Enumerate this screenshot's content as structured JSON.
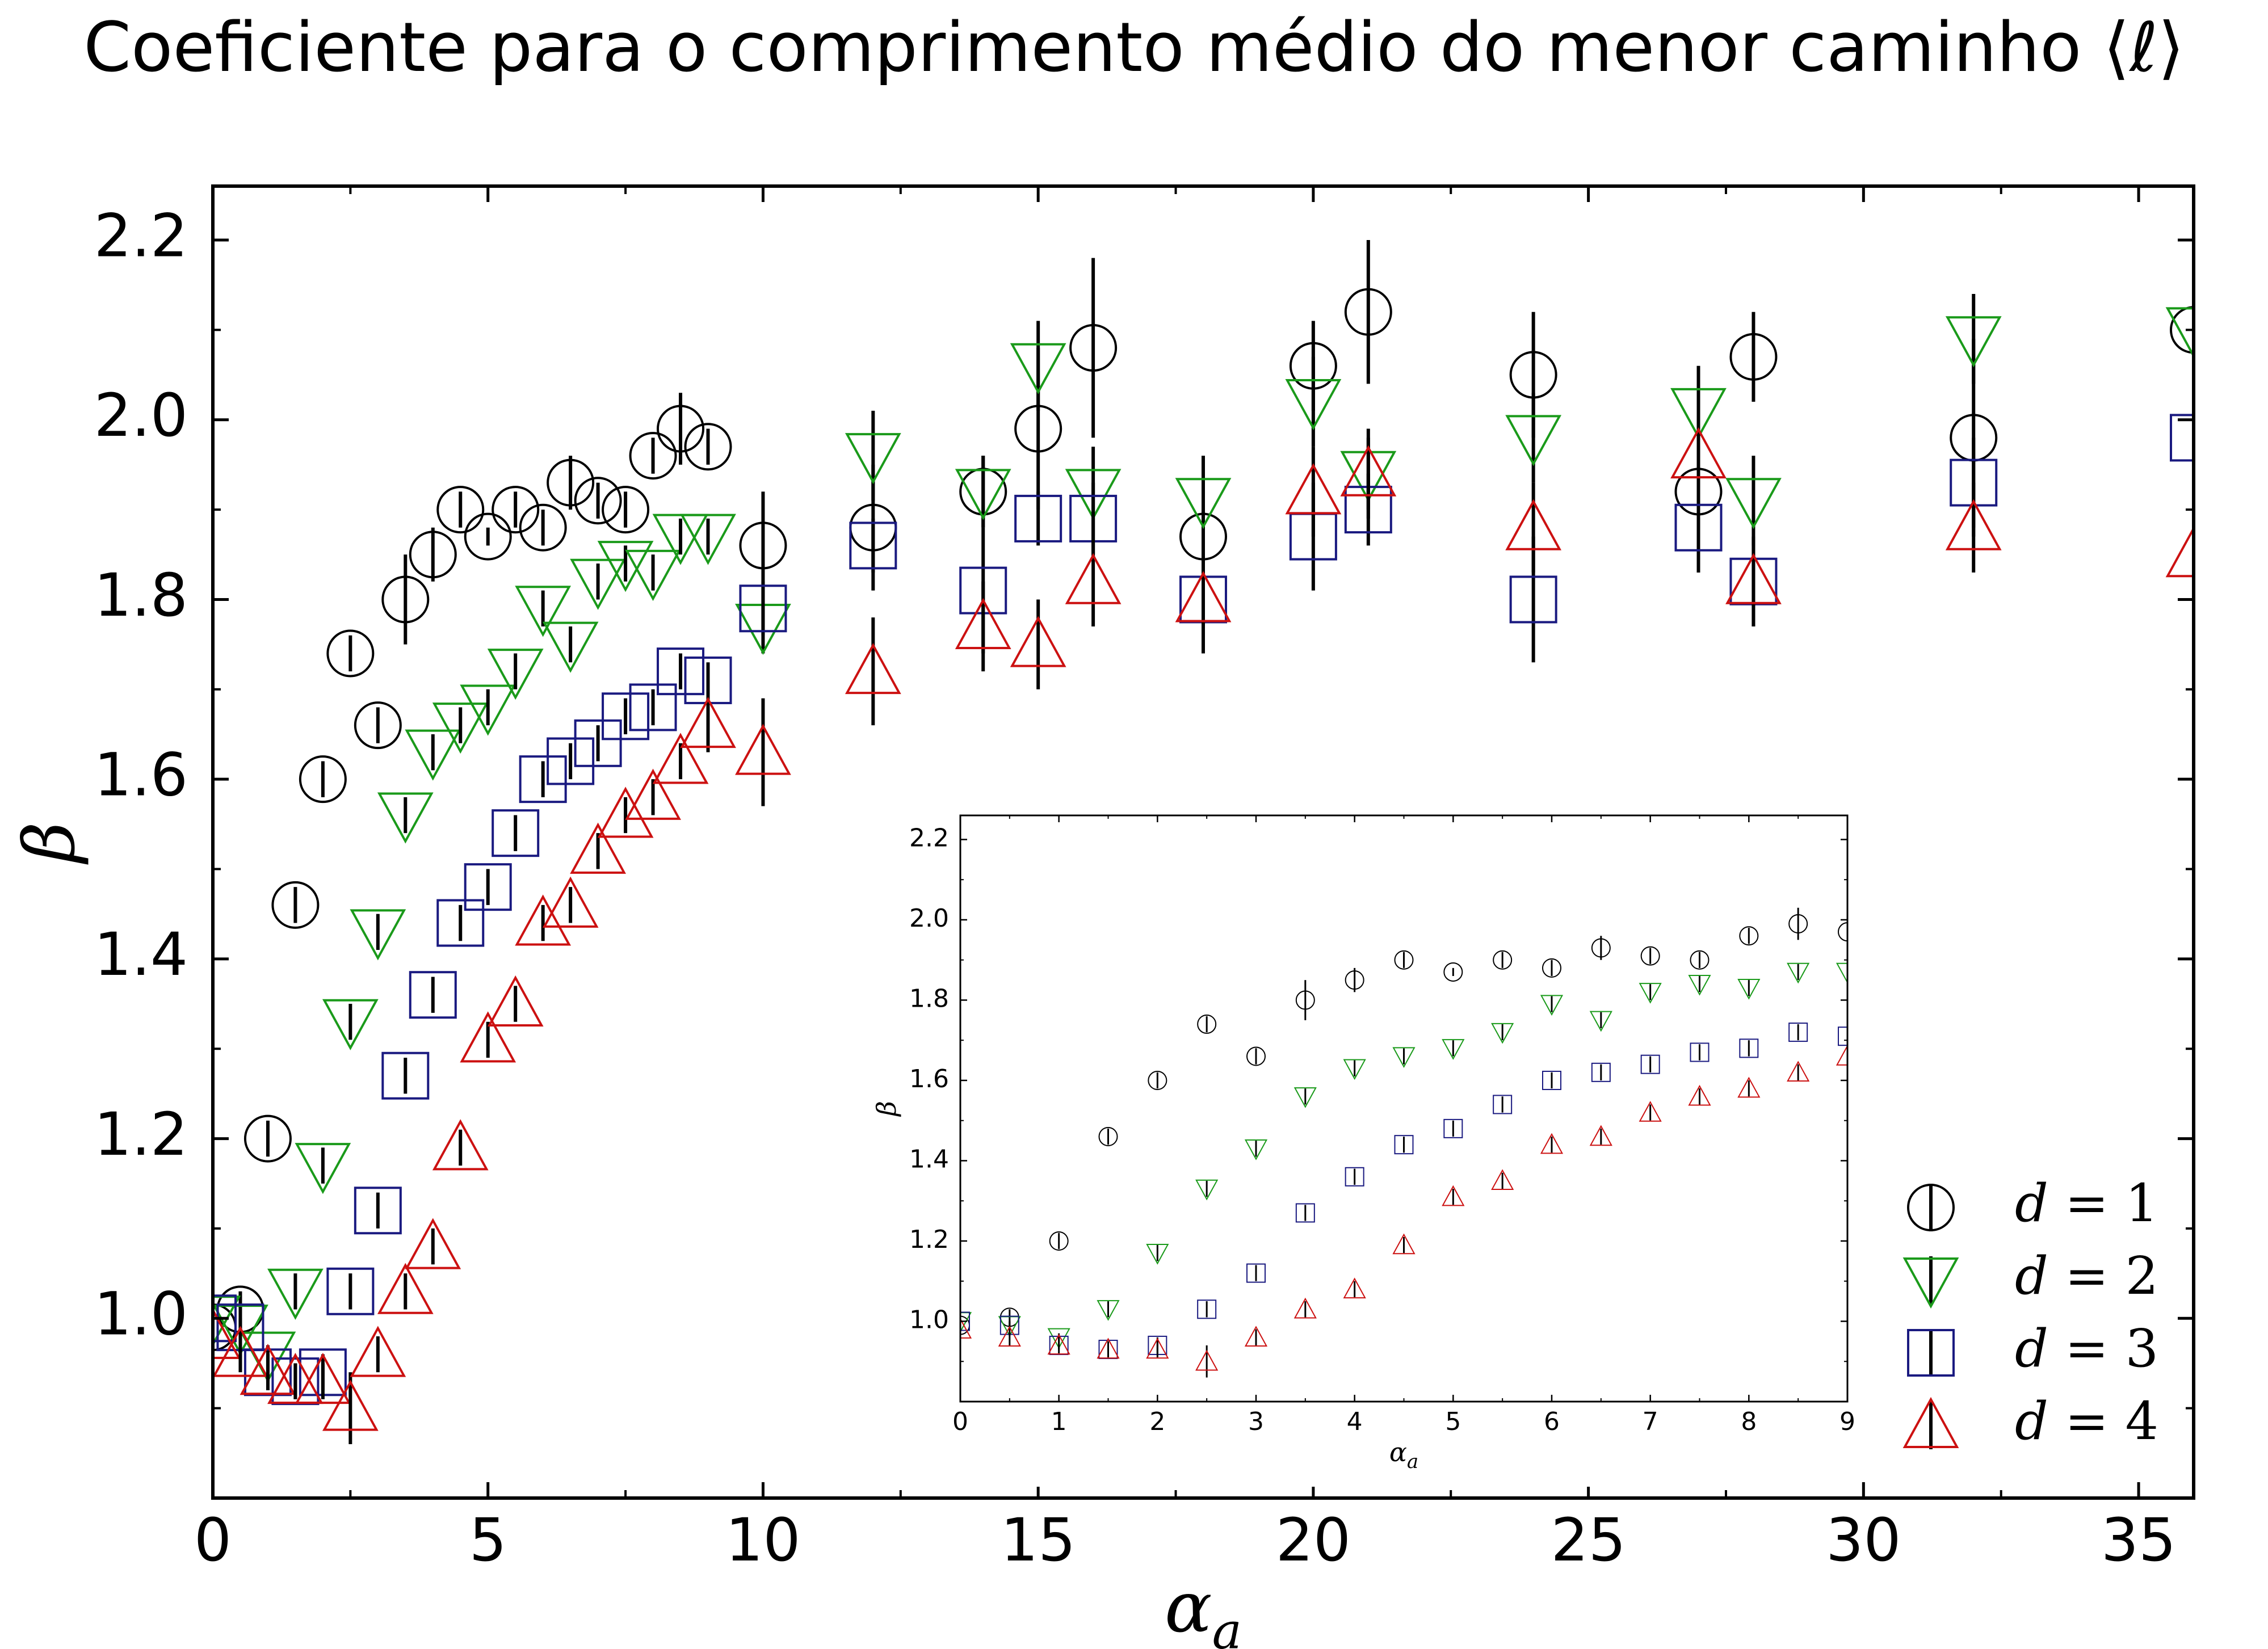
{
  "chart_data": [
    {
      "type": "scatter",
      "title": "Coeficiente para o comprimento médio do menor caminho ⟨ℓ⟩",
      "xlabel": "α_a",
      "ylabel": "β",
      "xlim": [
        0,
        36
      ],
      "ylim": [
        0.8,
        2.26
      ],
      "xticks": [
        "0",
        "5",
        "10",
        "15",
        "20",
        "25",
        "30",
        "35"
      ],
      "yticks": [
        "1.0",
        "1.2",
        "1.4",
        "1.6",
        "1.8",
        "2.0",
        "2.2"
      ],
      "grid": false,
      "legend_position": "bottom-right",
      "series": [
        {
          "name": "d = 1",
          "marker": "circle",
          "color": "#000000",
          "x": [
            0,
            0.5,
            1,
            1.5,
            2,
            2.5,
            3,
            3.5,
            4,
            4.5,
            5,
            5.5,
            6,
            6.5,
            7,
            7.5,
            8,
            8.5,
            9,
            10,
            12,
            14,
            15,
            16,
            18,
            20,
            21,
            24,
            27,
            28,
            32,
            36
          ],
          "y": [
            0.99,
            1.01,
            1.2,
            1.46,
            1.6,
            1.74,
            1.66,
            1.8,
            1.85,
            1.9,
            1.87,
            1.9,
            1.88,
            1.93,
            1.91,
            1.9,
            1.96,
            1.99,
            1.97,
            1.86,
            1.88,
            1.92,
            1.99,
            2.08,
            1.87,
            2.06,
            2.12,
            2.05,
            1.92,
            2.07,
            1.98,
            2.1
          ],
          "err": [
            0.01,
            0.02,
            0.02,
            0.02,
            0.02,
            0.02,
            0.02,
            0.05,
            0.03,
            0.02,
            0.01,
            0.02,
            0.02,
            0.03,
            0.02,
            0.02,
            0.02,
            0.04,
            0.02,
            0.06,
            0.07,
            0.04,
            0.09,
            0.1,
            0.08,
            0.05,
            0.08,
            0.07,
            0.09,
            0.05,
            0.11,
            0.05
          ]
        },
        {
          "name": "d = 2",
          "marker": "triangle-down",
          "color": "#1a9a1a",
          "x": [
            0,
            0.5,
            1,
            1.5,
            2,
            2.5,
            3,
            3.5,
            4,
            4.5,
            5,
            5.5,
            6,
            6.5,
            7,
            7.5,
            8,
            8.5,
            9,
            10,
            12,
            14,
            15,
            16,
            18,
            20,
            21,
            24,
            27,
            28,
            32,
            36
          ],
          "y": [
            1.0,
            0.99,
            0.96,
            1.03,
            1.17,
            1.33,
            1.43,
            1.56,
            1.63,
            1.66,
            1.68,
            1.72,
            1.79,
            1.75,
            1.82,
            1.84,
            1.83,
            1.87,
            1.87,
            1.77,
            1.96,
            1.92,
            2.06,
            1.92,
            1.91,
            2.02,
            1.94,
            1.98,
            2.01,
            1.91,
            2.09,
            2.1
          ],
          "err": [
            0.01,
            0.01,
            0.01,
            0.02,
            0.02,
            0.02,
            0.02,
            0.02,
            0.02,
            0.02,
            0.02,
            0.02,
            0.02,
            0.02,
            0.02,
            0.02,
            0.02,
            0.02,
            0.02,
            0.03,
            0.05,
            0.04,
            0.05,
            0.05,
            0.05,
            0.05,
            0.04,
            0.05,
            0.05,
            0.05,
            0.05,
            0.05
          ]
        },
        {
          "name": "d = 3",
          "marker": "square",
          "color": "#1a1a80",
          "x": [
            0,
            0.5,
            1,
            1.5,
            2,
            2.5,
            3,
            3.5,
            4,
            4.5,
            5,
            5.5,
            6,
            6.5,
            7,
            7.5,
            8,
            8.5,
            9,
            10,
            12,
            14,
            15,
            16,
            18,
            20,
            21,
            24,
            27,
            28,
            32,
            36
          ],
          "y": [
            1.0,
            0.99,
            0.94,
            0.93,
            0.94,
            1.03,
            1.12,
            1.27,
            1.36,
            1.44,
            1.48,
            1.54,
            1.6,
            1.62,
            1.64,
            1.67,
            1.68,
            1.72,
            1.71,
            1.79,
            1.86,
            1.81,
            1.89,
            1.89,
            1.8,
            1.87,
            1.9,
            1.8,
            1.88,
            1.82,
            1.93,
            1.98
          ],
          "err": [
            0.01,
            0.01,
            0.01,
            0.02,
            0.02,
            0.02,
            0.02,
            0.02,
            0.02,
            0.02,
            0.02,
            0.02,
            0.02,
            0.02,
            0.02,
            0.02,
            0.02,
            0.02,
            0.02,
            0.03,
            0.03,
            0.07,
            0.03,
            0.04,
            0.06,
            0.06,
            0.04,
            0.07,
            0.05,
            0.05,
            0.05,
            0.04
          ]
        },
        {
          "name": "d = 4",
          "marker": "triangle-up",
          "color": "#cc1111",
          "x": [
            0,
            0.5,
            1,
            1.5,
            2,
            2.5,
            3,
            3.5,
            4,
            4.5,
            5,
            5.5,
            6,
            6.5,
            7,
            7.5,
            8,
            8.5,
            9,
            10,
            12,
            14,
            15,
            16,
            18,
            20,
            21,
            24,
            27,
            28,
            32,
            36
          ],
          "y": [
            0.98,
            0.96,
            0.94,
            0.93,
            0.93,
            0.9,
            0.96,
            1.03,
            1.08,
            1.19,
            1.31,
            1.35,
            1.44,
            1.46,
            1.52,
            1.56,
            1.58,
            1.62,
            1.66,
            1.63,
            1.72,
            1.77,
            1.75,
            1.82,
            1.8,
            1.92,
            1.94,
            1.88,
            1.96,
            1.82,
            1.88,
            1.85
          ],
          "err": [
            0.02,
            0.02,
            0.02,
            0.02,
            0.02,
            0.04,
            0.02,
            0.02,
            0.02,
            0.02,
            0.02,
            0.02,
            0.02,
            0.02,
            0.02,
            0.02,
            0.02,
            0.02,
            0.03,
            0.06,
            0.06,
            0.05,
            0.05,
            0.05,
            0.05,
            0.05,
            0.05,
            0.05,
            0.05,
            0.05,
            0.05,
            0.05
          ]
        }
      ]
    },
    {
      "type": "scatter",
      "title": "",
      "xlabel": "α_a",
      "ylabel": "β",
      "xlim": [
        0,
        9
      ],
      "ylim": [
        0.8,
        2.26
      ],
      "xticks": [
        "0",
        "1",
        "2",
        "3",
        "4",
        "5",
        "6",
        "7",
        "8",
        "9"
      ],
      "yticks": [
        "1.0",
        "1.2",
        "1.4",
        "1.6",
        "1.8",
        "2.0",
        "2.2"
      ],
      "grid": false,
      "legend_position": "none",
      "uses_main_series_up_to_x": 9
    }
  ],
  "legend": {
    "entries": [
      {
        "symbol": "d",
        "eq": " = 1",
        "marker": "circle",
        "color": "#000000"
      },
      {
        "symbol": "d",
        "eq": " = 2",
        "marker": "triangle-down",
        "color": "#1a9a1a"
      },
      {
        "symbol": "d",
        "eq": " = 3",
        "marker": "square",
        "color": "#1a1a80"
      },
      {
        "symbol": "d",
        "eq": " = 4",
        "marker": "triangle-up",
        "color": "#cc1111"
      }
    ]
  }
}
